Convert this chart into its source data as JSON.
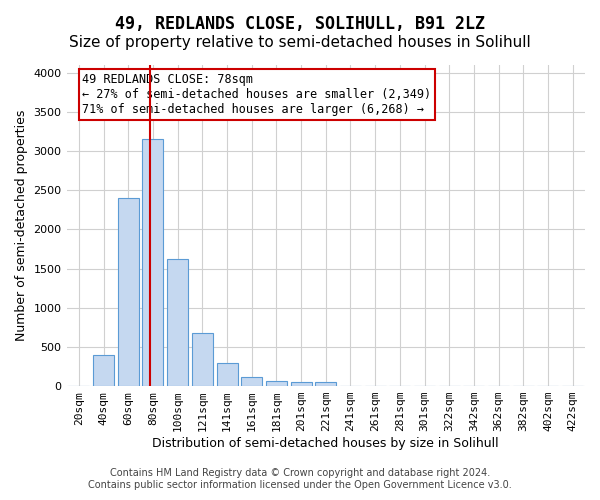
{
  "title": "49, REDLANDS CLOSE, SOLIHULL, B91 2LZ",
  "subtitle": "Size of property relative to semi-detached houses in Solihull",
  "xlabel": "Distribution of semi-detached houses by size in Solihull",
  "ylabel": "Number of semi-detached properties",
  "categories": [
    "20sqm",
    "40sqm",
    "60sqm",
    "80sqm",
    "100sqm",
    "121sqm",
    "141sqm",
    "161sqm",
    "181sqm",
    "201sqm",
    "221sqm",
    "241sqm",
    "261sqm",
    "281sqm",
    "301sqm",
    "322sqm",
    "342sqm",
    "362sqm",
    "382sqm",
    "402sqm",
    "422sqm"
  ],
  "bar_values": [
    0,
    400,
    2400,
    3150,
    1620,
    680,
    300,
    120,
    70,
    50,
    50,
    0,
    0,
    0,
    0,
    0,
    0,
    0,
    0,
    0,
    0
  ],
  "bar_color": "#c5d8f0",
  "bar_edge_color": "#5b9bd5",
  "ylim": [
    0,
    4100
  ],
  "yticks": [
    0,
    500,
    1000,
    1500,
    2000,
    2500,
    3000,
    3500,
    4000
  ],
  "property_size": 78,
  "property_size_bar_index": 3,
  "vline_color": "#cc0000",
  "annotation_text": "49 REDLANDS CLOSE: 78sqm\n← 27% of semi-detached houses are smaller (2,349)\n71% of semi-detached houses are larger (6,268) →",
  "annotation_box_color": "#ffffff",
  "annotation_edge_color": "#cc0000",
  "grid_color": "#d0d0d0",
  "background_color": "#ffffff",
  "footer_line1": "Contains HM Land Registry data © Crown copyright and database right 2024.",
  "footer_line2": "Contains public sector information licensed under the Open Government Licence v3.0.",
  "title_fontsize": 12,
  "subtitle_fontsize": 11,
  "axis_label_fontsize": 9,
  "tick_fontsize": 8,
  "annotation_fontsize": 8.5,
  "footer_fontsize": 7
}
